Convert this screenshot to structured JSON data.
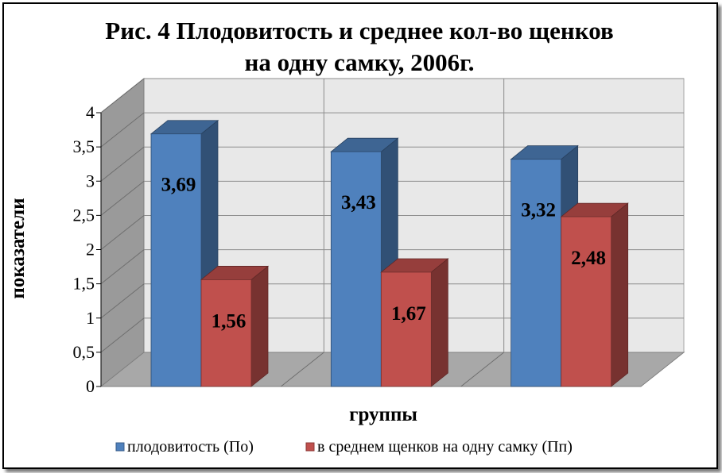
{
  "chart_data": {
    "type": "bar",
    "title_line1": "Рис. 4 Плодовитость и среднее кол-во щенков",
    "title_line2": "на одну самку, 2006г.",
    "xlabel": "группы",
    "ylabel": "показатели",
    "ylim": [
      0,
      4
    ],
    "yticks": [
      "0",
      "0,5",
      "1",
      "1,5",
      "2",
      "2,5",
      "3",
      "3,5",
      "4"
    ],
    "categories": [
      "",
      "",
      ""
    ],
    "series": [
      {
        "name": "плодовитость (По)",
        "values": [
          3.69,
          3.43,
          3.32
        ],
        "labels": [
          "3,69",
          "3,43",
          "3,32"
        ],
        "color": "#4f81bd"
      },
      {
        "name": "в среднем щенков на одну самку (Пп)",
        "values": [
          1.56,
          1.67,
          2.48
        ],
        "labels": [
          "1,56",
          "1,67",
          "2,48"
        ],
        "color": "#c0504d"
      }
    ],
    "grid": true,
    "legend": "bottom",
    "style": "3d-clustered-column"
  }
}
